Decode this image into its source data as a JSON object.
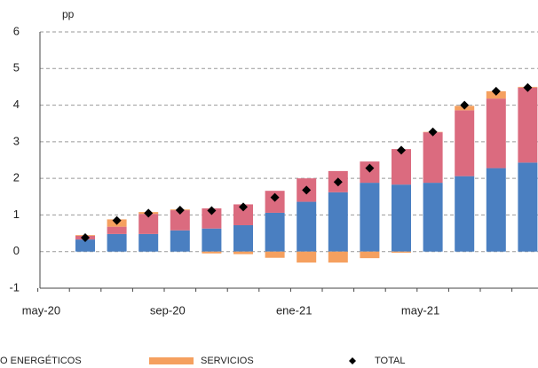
{
  "chart_data": {
    "type": "stacked_bar",
    "y_label": "pp",
    "categories": [
      "may-20",
      null,
      null,
      null,
      "sep-20",
      null,
      null,
      null,
      "ene-21",
      null,
      null,
      null,
      "may-21",
      null,
      null,
      null
    ],
    "series": [
      {
        "name": "O ENERGÉTICOS",
        "color": "#4a7fc1",
        "values": [
          null,
          0.33,
          0.48,
          0.48,
          0.58,
          0.63,
          0.72,
          1.06,
          1.36,
          1.62,
          1.88,
          1.83,
          1.88,
          2.06,
          2.28,
          2.43
        ]
      },
      {
        "name": null,
        "color": "#db6b7f",
        "values": [
          null,
          0.1,
          0.2,
          0.55,
          0.55,
          0.55,
          0.57,
          0.6,
          0.64,
          0.58,
          0.58,
          0.97,
          1.38,
          1.8,
          1.9,
          2.05
        ]
      },
      {
        "name": "SERVICIOS",
        "color": "#f5a05f",
        "values": [
          null,
          0.02,
          0.2,
          0.05,
          0.02,
          -0.05,
          -0.07,
          -0.17,
          -0.3,
          -0.3,
          -0.18,
          -0.03,
          0.01,
          0.12,
          0.2,
          0.02
        ]
      }
    ],
    "total": {
      "name": "TOTAL",
      "color": "#000000",
      "values": [
        null,
        0.38,
        0.85,
        1.05,
        1.13,
        1.12,
        1.22,
        1.48,
        1.68,
        1.9,
        2.28,
        2.77,
        3.27,
        4.0,
        4.38,
        4.48
      ]
    },
    "ylim": [
      -1,
      6
    ],
    "yticks": [
      -1,
      0,
      1,
      2,
      3,
      4,
      5,
      6
    ],
    "grid": true
  }
}
